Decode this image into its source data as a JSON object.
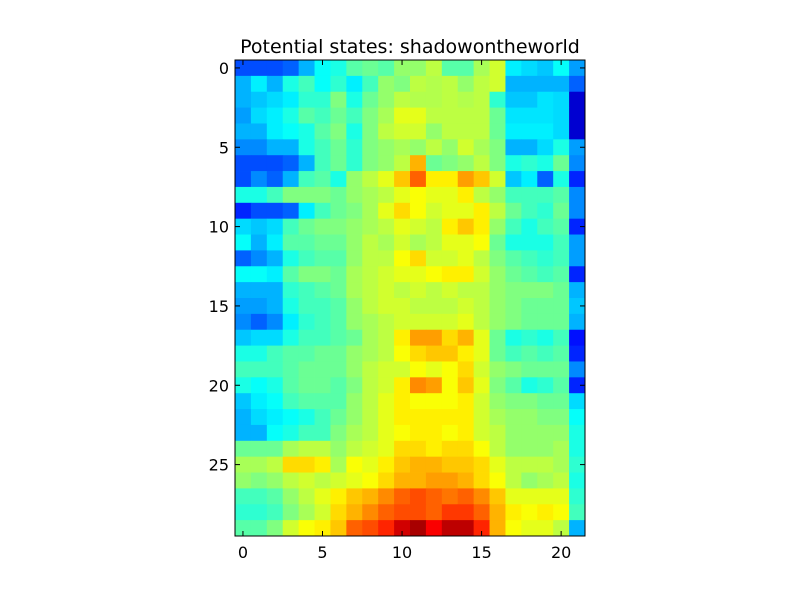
{
  "chart_data": {
    "type": "heatmap",
    "title": "Potential states: shadowontheworld",
    "xlabel": "",
    "ylabel": "",
    "xlim": [
      -0.5,
      21.5
    ],
    "ylim": [
      29.5,
      -0.5
    ],
    "x_ticks": [
      0,
      5,
      10,
      15,
      20
    ],
    "y_ticks": [
      0,
      5,
      10,
      15,
      20,
      25
    ],
    "colormap": "jet",
    "value_range": [
      0,
      1
    ],
    "grid": false,
    "legend": "none",
    "values": [
      [
        0.2,
        0.2,
        0.2,
        0.22,
        0.3,
        0.38,
        0.4,
        0.46,
        0.48,
        0.46,
        0.52,
        0.52,
        0.56,
        0.46,
        0.46,
        0.54,
        0.58,
        0.36,
        0.34,
        0.32,
        0.38,
        0.28
      ],
      [
        0.3,
        0.36,
        0.3,
        0.4,
        0.44,
        0.38,
        0.42,
        0.36,
        0.44,
        0.52,
        0.5,
        0.56,
        0.55,
        0.56,
        0.52,
        0.56,
        0.58,
        0.3,
        0.3,
        0.3,
        0.3,
        0.22
      ],
      [
        0.3,
        0.32,
        0.34,
        0.36,
        0.42,
        0.42,
        0.5,
        0.4,
        0.48,
        0.52,
        0.56,
        0.55,
        0.55,
        0.56,
        0.55,
        0.56,
        0.42,
        0.32,
        0.32,
        0.35,
        0.34,
        0.08
      ],
      [
        0.28,
        0.34,
        0.36,
        0.4,
        0.46,
        0.44,
        0.48,
        0.44,
        0.5,
        0.54,
        0.6,
        0.6,
        0.56,
        0.56,
        0.56,
        0.56,
        0.48,
        0.35,
        0.35,
        0.35,
        0.34,
        0.08
      ],
      [
        0.3,
        0.3,
        0.36,
        0.38,
        0.4,
        0.46,
        0.5,
        0.4,
        0.5,
        0.56,
        0.58,
        0.58,
        0.52,
        0.56,
        0.56,
        0.56,
        0.48,
        0.36,
        0.36,
        0.36,
        0.34,
        0.08
      ],
      [
        0.26,
        0.26,
        0.3,
        0.3,
        0.4,
        0.44,
        0.48,
        0.42,
        0.5,
        0.52,
        0.54,
        0.52,
        0.56,
        0.52,
        0.58,
        0.54,
        0.5,
        0.3,
        0.3,
        0.34,
        0.4,
        0.28
      ],
      [
        0.2,
        0.2,
        0.2,
        0.22,
        0.3,
        0.44,
        0.48,
        0.42,
        0.5,
        0.52,
        0.56,
        0.7,
        0.48,
        0.5,
        0.52,
        0.56,
        0.5,
        0.4,
        0.42,
        0.4,
        0.48,
        0.26
      ],
      [
        0.2,
        0.26,
        0.22,
        0.3,
        0.44,
        0.46,
        0.4,
        0.52,
        0.56,
        0.6,
        0.68,
        0.78,
        0.64,
        0.64,
        0.72,
        0.68,
        0.58,
        0.32,
        0.36,
        0.22,
        0.4,
        0.16
      ],
      [
        0.4,
        0.4,
        0.44,
        0.5,
        0.5,
        0.5,
        0.48,
        0.52,
        0.54,
        0.56,
        0.6,
        0.62,
        0.6,
        0.6,
        0.64,
        0.56,
        0.52,
        0.44,
        0.44,
        0.44,
        0.46,
        0.26
      ],
      [
        0.16,
        0.2,
        0.2,
        0.22,
        0.36,
        0.44,
        0.48,
        0.5,
        0.54,
        0.6,
        0.66,
        0.62,
        0.58,
        0.6,
        0.6,
        0.64,
        0.56,
        0.48,
        0.44,
        0.42,
        0.48,
        0.26
      ],
      [
        0.34,
        0.32,
        0.34,
        0.44,
        0.48,
        0.5,
        0.5,
        0.52,
        0.54,
        0.56,
        0.6,
        0.58,
        0.56,
        0.64,
        0.68,
        0.64,
        0.52,
        0.44,
        0.4,
        0.44,
        0.46,
        0.16
      ],
      [
        0.38,
        0.3,
        0.36,
        0.46,
        0.46,
        0.48,
        0.48,
        0.52,
        0.56,
        0.54,
        0.58,
        0.54,
        0.56,
        0.6,
        0.6,
        0.62,
        0.48,
        0.4,
        0.4,
        0.4,
        0.44,
        0.28
      ],
      [
        0.22,
        0.26,
        0.3,
        0.4,
        0.44,
        0.46,
        0.46,
        0.52,
        0.56,
        0.56,
        0.62,
        0.66,
        0.58,
        0.58,
        0.6,
        0.56,
        0.5,
        0.46,
        0.44,
        0.42,
        0.44,
        0.28
      ],
      [
        0.38,
        0.38,
        0.36,
        0.46,
        0.5,
        0.5,
        0.48,
        0.54,
        0.56,
        0.58,
        0.6,
        0.6,
        0.62,
        0.64,
        0.64,
        0.58,
        0.52,
        0.48,
        0.46,
        0.44,
        0.46,
        0.16
      ],
      [
        0.3,
        0.3,
        0.3,
        0.42,
        0.44,
        0.46,
        0.48,
        0.54,
        0.56,
        0.58,
        0.56,
        0.58,
        0.56,
        0.58,
        0.56,
        0.56,
        0.52,
        0.5,
        0.5,
        0.5,
        0.48,
        0.3
      ],
      [
        0.28,
        0.28,
        0.3,
        0.4,
        0.44,
        0.44,
        0.46,
        0.52,
        0.56,
        0.58,
        0.58,
        0.56,
        0.56,
        0.56,
        0.58,
        0.56,
        0.52,
        0.5,
        0.48,
        0.48,
        0.48,
        0.32
      ],
      [
        0.26,
        0.22,
        0.26,
        0.36,
        0.42,
        0.44,
        0.46,
        0.52,
        0.54,
        0.56,
        0.58,
        0.58,
        0.58,
        0.58,
        0.6,
        0.56,
        0.52,
        0.5,
        0.48,
        0.48,
        0.48,
        0.3
      ],
      [
        0.32,
        0.34,
        0.34,
        0.4,
        0.44,
        0.44,
        0.46,
        0.48,
        0.54,
        0.56,
        0.64,
        0.72,
        0.72,
        0.66,
        0.7,
        0.6,
        0.48,
        0.4,
        0.42,
        0.4,
        0.44,
        0.14
      ],
      [
        0.4,
        0.4,
        0.44,
        0.46,
        0.46,
        0.48,
        0.48,
        0.52,
        0.54,
        0.56,
        0.62,
        0.66,
        0.68,
        0.68,
        0.64,
        0.6,
        0.48,
        0.44,
        0.46,
        0.44,
        0.46,
        0.16
      ],
      [
        0.44,
        0.44,
        0.44,
        0.46,
        0.48,
        0.48,
        0.48,
        0.52,
        0.56,
        0.58,
        0.58,
        0.62,
        0.6,
        0.62,
        0.66,
        0.58,
        0.52,
        0.5,
        0.48,
        0.48,
        0.48,
        0.26
      ],
      [
        0.4,
        0.38,
        0.4,
        0.46,
        0.48,
        0.48,
        0.46,
        0.5,
        0.56,
        0.58,
        0.64,
        0.74,
        0.72,
        0.62,
        0.68,
        0.6,
        0.5,
        0.46,
        0.4,
        0.42,
        0.46,
        0.16
      ],
      [
        0.32,
        0.36,
        0.38,
        0.44,
        0.46,
        0.46,
        0.46,
        0.52,
        0.56,
        0.6,
        0.64,
        0.62,
        0.62,
        0.62,
        0.64,
        0.58,
        0.52,
        0.5,
        0.5,
        0.48,
        0.48,
        0.34
      ],
      [
        0.3,
        0.34,
        0.36,
        0.38,
        0.4,
        0.44,
        0.48,
        0.52,
        0.56,
        0.6,
        0.64,
        0.64,
        0.64,
        0.64,
        0.64,
        0.58,
        0.54,
        0.52,
        0.52,
        0.5,
        0.5,
        0.38
      ],
      [
        0.3,
        0.3,
        0.38,
        0.4,
        0.44,
        0.44,
        0.5,
        0.54,
        0.56,
        0.6,
        0.62,
        0.64,
        0.64,
        0.62,
        0.64,
        0.58,
        0.56,
        0.52,
        0.52,
        0.52,
        0.52,
        0.4
      ],
      [
        0.48,
        0.48,
        0.48,
        0.54,
        0.56,
        0.56,
        0.52,
        0.56,
        0.58,
        0.6,
        0.66,
        0.66,
        0.64,
        0.66,
        0.66,
        0.62,
        0.56,
        0.52,
        0.52,
        0.52,
        0.54,
        0.4
      ],
      [
        0.54,
        0.54,
        0.56,
        0.66,
        0.66,
        0.64,
        0.54,
        0.62,
        0.6,
        0.64,
        0.68,
        0.7,
        0.7,
        0.68,
        0.68,
        0.66,
        0.6,
        0.56,
        0.56,
        0.56,
        0.54,
        0.42
      ],
      [
        0.52,
        0.5,
        0.52,
        0.56,
        0.58,
        0.56,
        0.58,
        0.6,
        0.62,
        0.66,
        0.7,
        0.7,
        0.72,
        0.72,
        0.7,
        0.66,
        0.62,
        0.56,
        0.52,
        0.54,
        0.56,
        0.4
      ],
      [
        0.44,
        0.44,
        0.46,
        0.52,
        0.56,
        0.6,
        0.64,
        0.68,
        0.7,
        0.74,
        0.78,
        0.8,
        0.78,
        0.76,
        0.78,
        0.74,
        0.68,
        0.6,
        0.6,
        0.6,
        0.6,
        0.42
      ],
      [
        0.42,
        0.42,
        0.44,
        0.5,
        0.54,
        0.58,
        0.66,
        0.7,
        0.74,
        0.78,
        0.8,
        0.8,
        0.78,
        0.82,
        0.82,
        0.78,
        0.7,
        0.64,
        0.62,
        0.64,
        0.62,
        0.44
      ],
      [
        0.46,
        0.46,
        0.5,
        0.58,
        0.62,
        0.64,
        0.68,
        0.78,
        0.8,
        0.84,
        0.92,
        0.96,
        0.88,
        0.94,
        0.94,
        0.84,
        0.7,
        0.62,
        0.6,
        0.6,
        0.56,
        0.3
      ]
    ]
  }
}
